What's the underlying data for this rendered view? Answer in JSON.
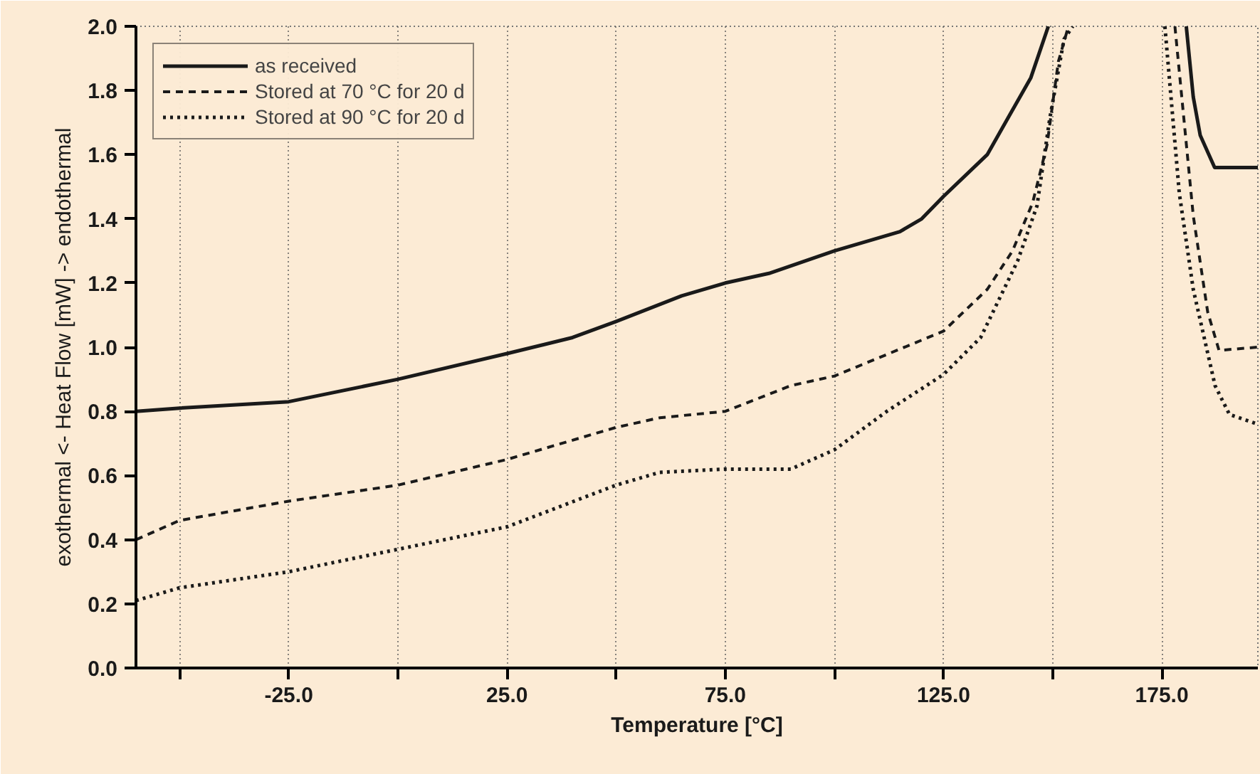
{
  "chart_data": {
    "type": "line",
    "xlabel": "Temperature [°C]",
    "ylabel": "exothermal <- Heat Flow [mW] -> endothermal",
    "xlim": [
      -60,
      197
    ],
    "ylim": [
      0,
      2
    ],
    "xticks": [
      {
        "value": -50,
        "label": null
      },
      {
        "value": -25,
        "label": "-25.0"
      },
      {
        "value": 0,
        "label": null
      },
      {
        "value": 25,
        "label": "25.0"
      },
      {
        "value": 50,
        "label": null
      },
      {
        "value": 75,
        "label": "75.0"
      },
      {
        "value": 100,
        "label": null
      },
      {
        "value": 125,
        "label": "125.0"
      },
      {
        "value": 150,
        "label": null
      },
      {
        "value": 175,
        "label": "175.0"
      }
    ],
    "yticks": [
      {
        "value": 0,
        "label": "0.0"
      },
      {
        "value": 0.2,
        "label": "0.2"
      },
      {
        "value": 0.4,
        "label": "0.4"
      },
      {
        "value": 0.6,
        "label": "0.6"
      },
      {
        "value": 0.8,
        "label": "0.8"
      },
      {
        "value": 1.0,
        "label": "1.0"
      },
      {
        "value": 1.2,
        "label": "1.2"
      },
      {
        "value": 1.4,
        "label": "1.4"
      },
      {
        "value": 1.6,
        "label": "1.6"
      },
      {
        "value": 1.8,
        "label": "1.8"
      },
      {
        "value": 2.0,
        "label": "2.0"
      }
    ],
    "grid": "x",
    "legend": "top left",
    "marker": "none",
    "series": [
      {
        "name": "as received",
        "color": "#1a1a1a",
        "line_style": "solid",
        "x": [
          -60,
          -50,
          -25,
          0,
          25,
          40,
          50,
          65,
          75,
          85,
          100,
          115,
          120,
          125,
          135,
          140,
          145,
          149,
          null,
          180.6,
          182.2,
          183.8,
          187.1,
          197
        ],
        "values": [
          0.8,
          0.81,
          0.83,
          0.9,
          0.98,
          1.03,
          1.08,
          1.16,
          1.2,
          1.23,
          1.3,
          1.36,
          1.4,
          1.47,
          1.6,
          1.72,
          1.84,
          2.0,
          null,
          2.0,
          1.78,
          1.66,
          1.56,
          1.56
        ]
      },
      {
        "name": "Stored at 70 °C for 20 d",
        "color": "#1a1a1a",
        "line_style": "dashed",
        "x": [
          -60,
          -50,
          -25,
          0,
          25,
          50,
          60,
          75,
          90,
          100,
          125,
          135,
          140.8,
          145.4,
          148.7,
          151.3,
          153.6,
          null,
          178,
          182.2,
          185.5,
          188.1,
          197
        ],
        "values": [
          0.4,
          0.46,
          0.52,
          0.57,
          0.65,
          0.75,
          0.78,
          0.8,
          0.88,
          0.91,
          1.05,
          1.18,
          1.3,
          1.45,
          1.63,
          1.89,
          2.0,
          null,
          2.0,
          1.41,
          1.11,
          0.99,
          1.0
        ]
      },
      {
        "name": "Stored at 90 °C for 20 d",
        "color": "#1a1a1a",
        "line_style": "dotted",
        "x": [
          -60,
          -50,
          -25,
          0,
          25,
          50,
          60,
          75,
          90,
          100,
          112,
          125,
          133.5,
          142,
          146.4,
          149.3,
          152.6,
          154.6,
          null,
          175.7,
          179,
          182.2,
          187.2,
          190.5,
          197
        ],
        "values": [
          0.21,
          0.25,
          0.3,
          0.37,
          0.44,
          0.57,
          0.61,
          0.62,
          0.62,
          0.68,
          0.8,
          0.915,
          1.03,
          1.27,
          1.44,
          1.71,
          1.96,
          2.0,
          null,
          2.0,
          1.48,
          1.18,
          0.88,
          0.79,
          0.76
        ]
      }
    ]
  }
}
